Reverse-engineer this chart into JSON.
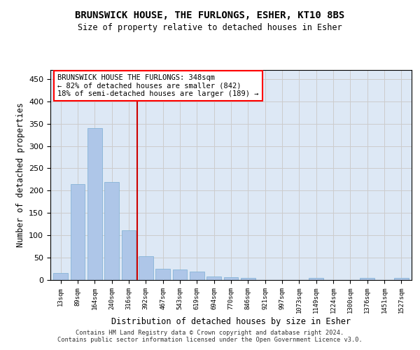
{
  "title": "BRUNSWICK HOUSE, THE FURLONGS, ESHER, KT10 8BS",
  "subtitle": "Size of property relative to detached houses in Esher",
  "xlabel": "Distribution of detached houses by size in Esher",
  "ylabel": "Number of detached properties",
  "bar_labels": [
    "13sqm",
    "89sqm",
    "164sqm",
    "240sqm",
    "316sqm",
    "392sqm",
    "467sqm",
    "543sqm",
    "619sqm",
    "694sqm",
    "770sqm",
    "846sqm",
    "921sqm",
    "997sqm",
    "1073sqm",
    "1149sqm",
    "1224sqm",
    "1300sqm",
    "1376sqm",
    "1451sqm",
    "1527sqm"
  ],
  "bar_values": [
    15,
    215,
    340,
    220,
    111,
    53,
    25,
    23,
    19,
    8,
    6,
    4,
    0,
    0,
    0,
    4,
    0,
    0,
    4,
    0,
    4
  ],
  "bar_color": "#aec6e8",
  "bar_edge_color": "#7bafd4",
  "vline_color": "#cc0000",
  "vline_x": 4.5,
  "annotation_text": "BRUNSWICK HOUSE THE FURLONGS: 348sqm\n← 82% of detached houses are smaller (842)\n18% of semi-detached houses are larger (189) →",
  "ylim": [
    0,
    470
  ],
  "yticks": [
    0,
    50,
    100,
    150,
    200,
    250,
    300,
    350,
    400,
    450
  ],
  "grid_color": "#cccccc",
  "background_color": "#dde8f5",
  "footer": "Contains HM Land Registry data © Crown copyright and database right 2024.\nContains public sector information licensed under the Open Government Licence v3.0."
}
